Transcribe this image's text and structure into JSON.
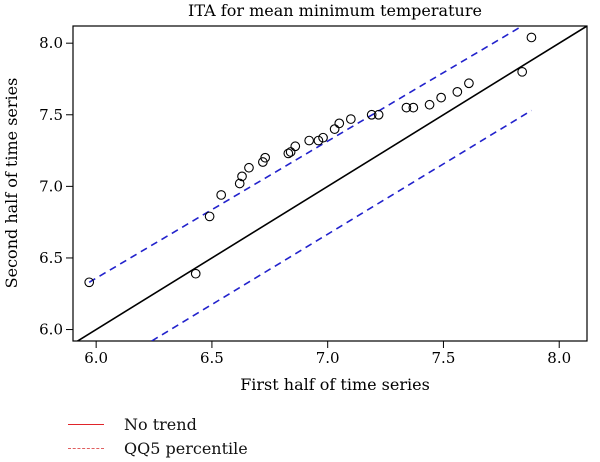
{
  "chart_data": {
    "type": "scatter",
    "title": "ITA for mean minimum temperature",
    "xlabel": "First half of time series",
    "ylabel": "Second half of time series",
    "xlim": [
      5.9,
      8.12
    ],
    "ylim": [
      5.92,
      8.12
    ],
    "xticks": [
      6.0,
      6.5,
      7.0,
      7.5,
      8.0
    ],
    "xtick_labels": [
      "6.0",
      "6.5",
      "7.0",
      "7.5",
      "8.0"
    ],
    "yticks": [
      6.0,
      6.5,
      7.0,
      7.5,
      8.0
    ],
    "ytick_labels": [
      "6.0",
      "6.5",
      "7.0",
      "7.5",
      "8.0"
    ],
    "grid": false,
    "points": [
      {
        "x": 5.97,
        "y": 6.33
      },
      {
        "x": 6.43,
        "y": 6.39
      },
      {
        "x": 6.49,
        "y": 6.79
      },
      {
        "x": 6.54,
        "y": 6.94
      },
      {
        "x": 6.62,
        "y": 7.02
      },
      {
        "x": 6.63,
        "y": 7.07
      },
      {
        "x": 6.66,
        "y": 7.13
      },
      {
        "x": 6.72,
        "y": 7.17
      },
      {
        "x": 6.73,
        "y": 7.2
      },
      {
        "x": 6.83,
        "y": 7.23
      },
      {
        "x": 6.84,
        "y": 7.24
      },
      {
        "x": 6.86,
        "y": 7.28
      },
      {
        "x": 6.92,
        "y": 7.32
      },
      {
        "x": 6.96,
        "y": 7.32
      },
      {
        "x": 6.98,
        "y": 7.34
      },
      {
        "x": 7.03,
        "y": 7.4
      },
      {
        "x": 7.05,
        "y": 7.44
      },
      {
        "x": 7.1,
        "y": 7.47
      },
      {
        "x": 7.19,
        "y": 7.5
      },
      {
        "x": 7.22,
        "y": 7.5
      },
      {
        "x": 7.34,
        "y": 7.55
      },
      {
        "x": 7.37,
        "y": 7.55
      },
      {
        "x": 7.44,
        "y": 7.57
      },
      {
        "x": 7.49,
        "y": 7.62
      },
      {
        "x": 7.56,
        "y": 7.66
      },
      {
        "x": 7.61,
        "y": 7.72
      },
      {
        "x": 7.84,
        "y": 7.8
      },
      {
        "x": 7.88,
        "y": 8.04
      }
    ],
    "reference_lines": [
      {
        "kind": "no_trend",
        "style": "solid",
        "color": "#000000",
        "from": [
          5.9,
          5.9
        ],
        "to": [
          8.12,
          8.12
        ]
      },
      {
        "kind": "upper",
        "style": "dashed",
        "color": "#2222cc",
        "from": [
          5.97,
          6.33
        ],
        "to": [
          7.84,
          8.12
        ]
      },
      {
        "kind": "lower",
        "style": "dashed",
        "color": "#2222cc",
        "from": [
          6.24,
          5.92
        ],
        "to": [
          7.88,
          7.53
        ]
      }
    ],
    "legend": {
      "position": "bottom-left",
      "entries": [
        {
          "label": "No trend",
          "style": "solid",
          "color": "#e0242a"
        },
        {
          "label": "QQ5 percentile",
          "style": "dashed",
          "color": "#e06060"
        }
      ]
    }
  }
}
